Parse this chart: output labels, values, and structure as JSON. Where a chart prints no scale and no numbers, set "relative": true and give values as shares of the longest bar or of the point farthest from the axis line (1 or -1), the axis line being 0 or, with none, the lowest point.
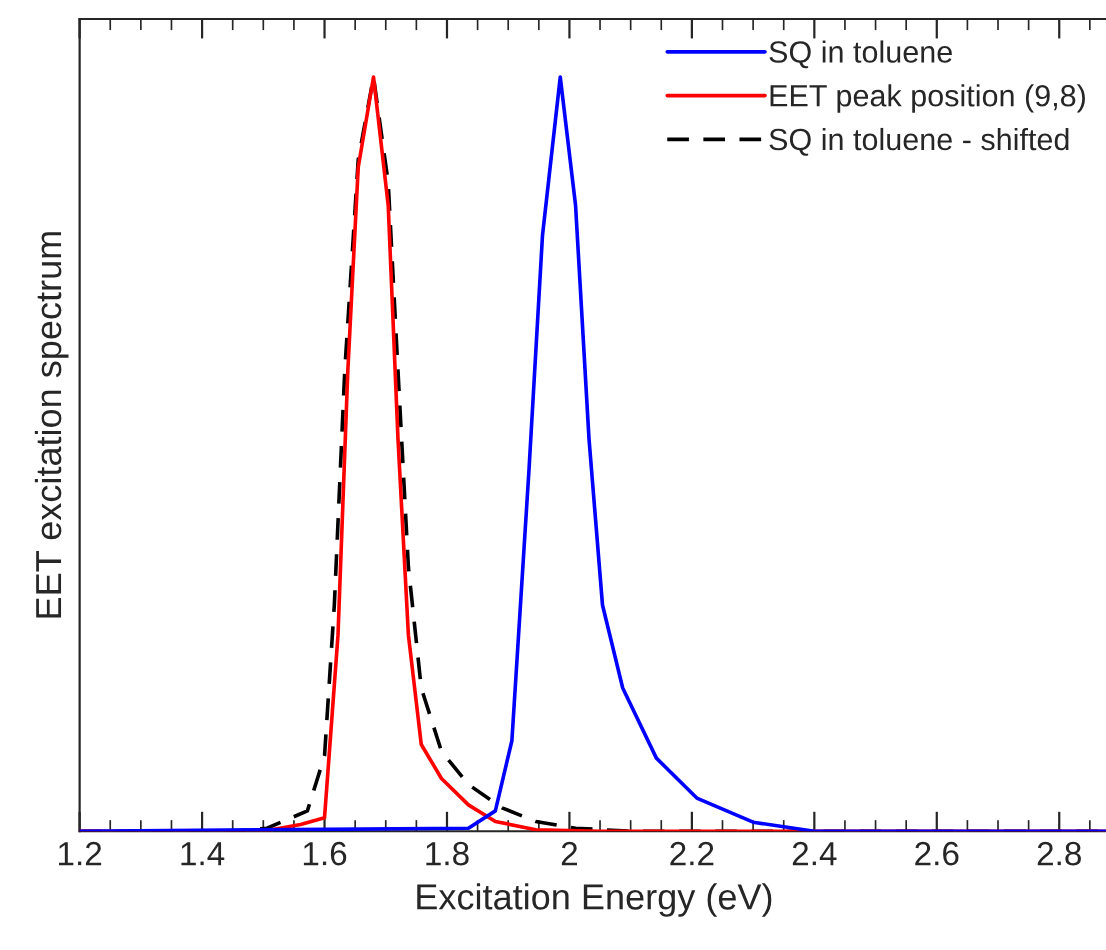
{
  "chart_data": {
    "type": "line",
    "xlabel": "Excitation Energy (eV)",
    "ylabel": "EET excitation spectrum",
    "relative": true,
    "xlim": [
      1.2,
      2.88
    ],
    "xticks": [
      1.2,
      {
        "value": 1.25,
        "label": null
      },
      {
        "value": 1.3,
        "label": null
      },
      {
        "value": 1.35,
        "label": null
      },
      1.4,
      {
        "value": 1.45,
        "label": null
      },
      {
        "value": 1.5,
        "label": null
      },
      {
        "value": 1.55,
        "label": null
      },
      1.6,
      {
        "value": 1.65,
        "label": null
      },
      {
        "value": 1.7,
        "label": null
      },
      {
        "value": 1.75,
        "label": null
      },
      1.8,
      {
        "value": 1.85,
        "label": null
      },
      {
        "value": 1.9,
        "label": null
      },
      {
        "value": 1.95,
        "label": null
      },
      2,
      {
        "value": 2.05,
        "label": null
      },
      {
        "value": 2.1,
        "label": null
      },
      {
        "value": 2.15,
        "label": null
      },
      2.2,
      {
        "value": 2.25,
        "label": null
      },
      {
        "value": 2.3,
        "label": null
      },
      {
        "value": 2.35,
        "label": null
      },
      2.4,
      {
        "value": 2.45,
        "label": null
      },
      {
        "value": 2.5,
        "label": null
      },
      {
        "value": 2.55,
        "label": null
      },
      2.6,
      {
        "value": 2.65,
        "label": null
      },
      {
        "value": 2.7,
        "label": null
      },
      {
        "value": 2.75,
        "label": null
      },
      2.8,
      {
        "value": 2.85,
        "label": null
      }
    ],
    "tick_labels": "x",
    "grid": false,
    "legend": "top right",
    "line_style": "solid",
    "marker": "none",
    "series": [
      {
        "name": "SQ in toluene",
        "color": "#0000ff",
        "x": [
          1.2,
          1.835,
          1.879,
          1.906,
          1.934,
          1.956,
          1.985,
          2.01,
          2.032,
          2.054,
          2.087,
          2.142,
          2.208,
          2.3,
          2.4,
          2.88
        ],
        "values": [
          0,
          0.004,
          0.027,
          0.12,
          0.48,
          0.79,
          1,
          0.83,
          0.52,
          0.3,
          0.19,
          0.097,
          0.044,
          0.012,
          0,
          0
        ]
      },
      {
        "name": "EET peak position (9,8)",
        "color": "#ff0000",
        "x": [
          1.2,
          1.5,
          1.561,
          1.6,
          1.622,
          1.638,
          1.655,
          1.68,
          1.704,
          1.72,
          1.737,
          1.758,
          1.791,
          1.835,
          1.879,
          1.945,
          2.05,
          2.88
        ],
        "values": [
          0,
          0,
          0.009,
          0.018,
          0.26,
          0.61,
          0.88,
          1,
          0.83,
          0.52,
          0.26,
          0.115,
          0.07,
          0.035,
          0.013,
          0.002,
          0,
          0
        ]
      },
      {
        "name": "SQ in toluene - shifted",
        "color": "#000000",
        "line_style": "dashed",
        "x": [
          1.2,
          1.45,
          1.506,
          1.572,
          1.6,
          1.616,
          1.633,
          1.655,
          1.68,
          1.704,
          1.72,
          1.737,
          1.758,
          1.791,
          1.835,
          1.89,
          1.945,
          2.01,
          2.1,
          2.88
        ],
        "values": [
          0,
          0,
          0.004,
          0.027,
          0.1,
          0.3,
          0.61,
          0.89,
          1,
          0.86,
          0.61,
          0.35,
          0.19,
          0.106,
          0.062,
          0.031,
          0.013,
          0.004,
          0,
          0
        ]
      }
    ]
  }
}
